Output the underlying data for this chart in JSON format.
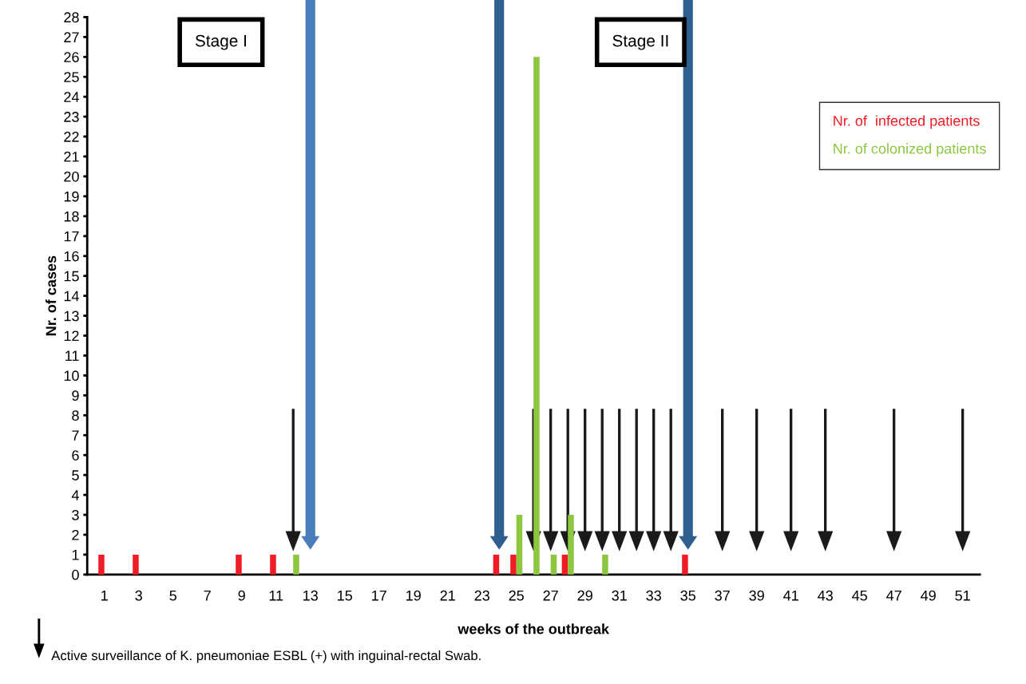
{
  "chart_data": {
    "type": "bar",
    "xlabel": "weeks of the outbreak",
    "ylabel": "Nr. of cases",
    "series": [
      {
        "name": "Nr. of  infected patients",
        "color": "#ee1c25",
        "x": [
          1,
          3,
          9,
          11,
          24,
          25,
          28,
          35
        ],
        "values": [
          1,
          1,
          1,
          1,
          1,
          1,
          1,
          1
        ]
      },
      {
        "name": "Nr. of colonized patients",
        "color": "#8dc63f",
        "x": [
          12,
          25,
          26,
          27,
          28,
          30
        ],
        "values": [
          1,
          3,
          26,
          1,
          3,
          1
        ]
      }
    ],
    "xlim": [
      0,
      52
    ],
    "xticks": [
      1,
      3,
      5,
      7,
      9,
      11,
      13,
      15,
      17,
      19,
      21,
      23,
      25,
      27,
      29,
      31,
      33,
      35,
      37,
      39,
      41,
      43,
      45,
      47,
      49,
      51
    ],
    "ylim": [
      0,
      28
    ],
    "yticks": [
      0,
      1,
      2,
      3,
      4,
      5,
      6,
      7,
      8,
      9,
      10,
      11,
      12,
      13,
      14,
      15,
      16,
      17,
      18,
      19,
      20,
      21,
      22,
      23,
      24,
      25,
      26,
      27,
      28
    ],
    "grid": false,
    "legend": "top right",
    "ref_lines": [
      {
        "axis": "x",
        "value": 13,
        "color": "#4a7ebb"
      },
      {
        "axis": "x",
        "value": 24,
        "color": "#2f5f8f"
      },
      {
        "axis": "x",
        "value": 35,
        "color": "#2f5f8f"
      },
      {
        "axis": "x",
        "value": 12,
        "color": "#1a1a1a"
      },
      {
        "axis": "x",
        "value": 26,
        "color": "#1a1a1a"
      },
      {
        "axis": "x",
        "value": 27,
        "color": "#1a1a1a"
      },
      {
        "axis": "x",
        "value": 28,
        "color": "#1a1a1a"
      },
      {
        "axis": "x",
        "value": 29,
        "color": "#1a1a1a"
      },
      {
        "axis": "x",
        "value": 30,
        "color": "#1a1a1a"
      },
      {
        "axis": "x",
        "value": 31,
        "color": "#1a1a1a"
      },
      {
        "axis": "x",
        "value": 32,
        "color": "#1a1a1a"
      },
      {
        "axis": "x",
        "value": 33,
        "color": "#1a1a1a"
      },
      {
        "axis": "x",
        "value": 34,
        "color": "#1a1a1a"
      },
      {
        "axis": "x",
        "value": 37,
        "color": "#1a1a1a"
      },
      {
        "axis": "x",
        "value": 39,
        "color": "#1a1a1a"
      },
      {
        "axis": "x",
        "value": 41,
        "color": "#1a1a1a"
      },
      {
        "axis": "x",
        "value": 43,
        "color": "#1a1a1a"
      },
      {
        "axis": "x",
        "value": 47,
        "color": "#1a1a1a"
      },
      {
        "axis": "x",
        "value": 51,
        "color": "#1a1a1a"
      }
    ],
    "annotations": [
      "Stage I",
      "Stage II",
      "Active surveillance of K. pneumoniae ESBL (+) with inguinal-rectal Swab."
    ]
  }
}
